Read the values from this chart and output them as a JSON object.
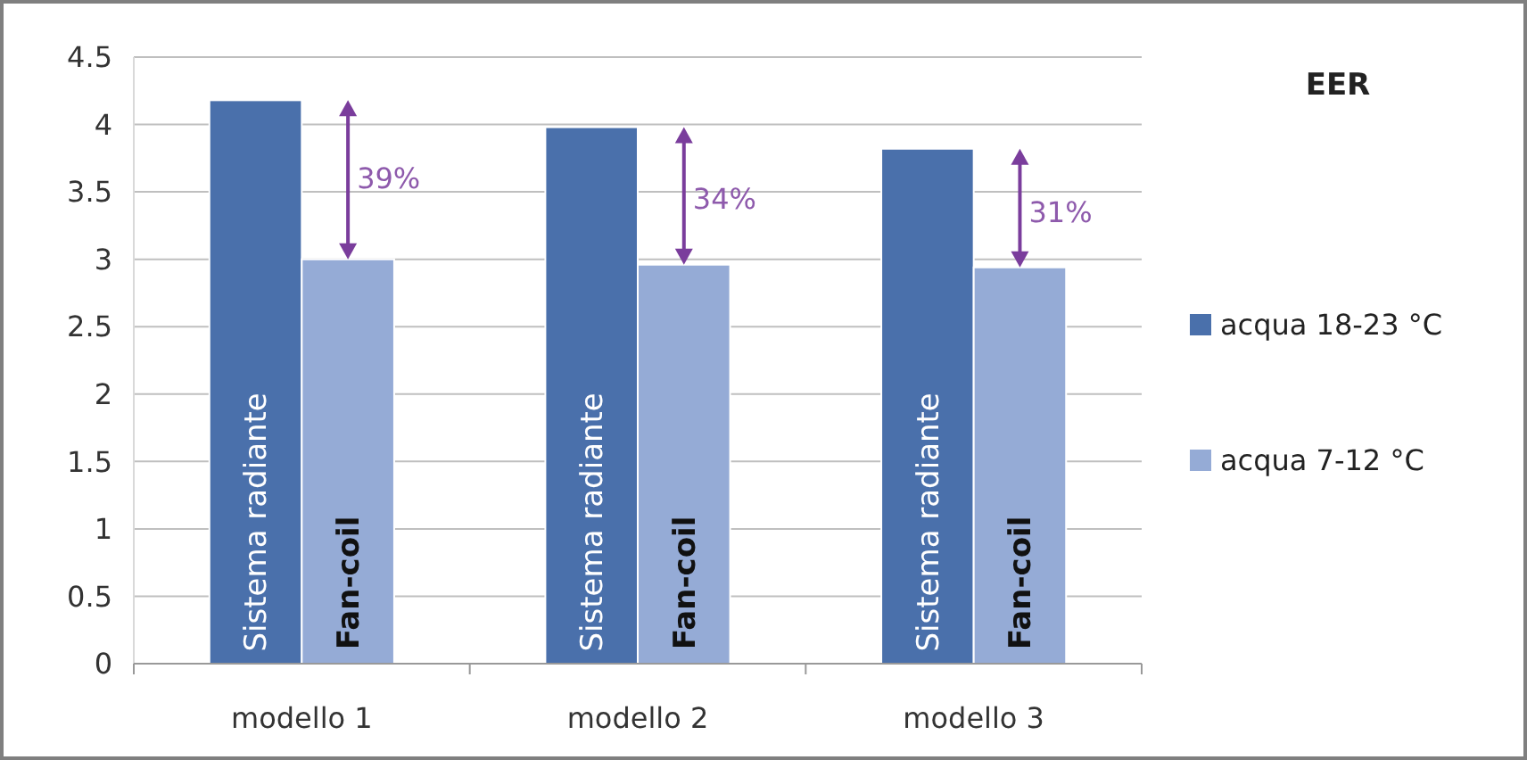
{
  "chart_data": {
    "type": "bar",
    "title": "EER",
    "categories": [
      "modello 1",
      "modello 2",
      "modello 3"
    ],
    "series": [
      {
        "name": "acqua 18-23 °C",
        "color": "#4a70ab",
        "values": [
          4.18,
          3.98,
          3.82
        ]
      },
      {
        "name": "acqua 7-12 °C",
        "color": "#95abd6",
        "values": [
          3.0,
          2.96,
          2.94
        ]
      }
    ],
    "ylim": [
      0,
      4.5
    ],
    "yticks": [
      0,
      0.5,
      1,
      1.5,
      2,
      2.5,
      3,
      3.5,
      4,
      4.5
    ],
    "grid": "y",
    "legend": "right",
    "annotations": [
      {
        "text": "Sistema radiante",
        "x": "modello 1",
        "y": 1.05
      },
      {
        "text": "Fan-coil",
        "x": "modello 1",
        "y": 0.6
      },
      {
        "text": "Sistema radiante",
        "x": "modello 2",
        "y": 1.05
      },
      {
        "text": "Fan-coil",
        "x": "modello 2",
        "y": 0.6
      },
      {
        "text": "Sistema radiante",
        "x": "modello 3",
        "y": 1.05
      },
      {
        "text": "Fan-coil",
        "x": "modello 3",
        "y": 0.6
      },
      {
        "text": "39%",
        "x": "modello 1",
        "y": 3.6
      },
      {
        "text": "34%",
        "x": "modello 2",
        "y": 3.45
      },
      {
        "text": "31%",
        "x": "modello 3",
        "y": 3.35
      }
    ]
  }
}
